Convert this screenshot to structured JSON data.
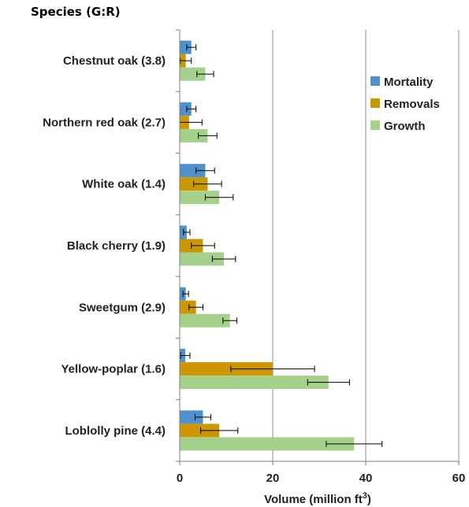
{
  "chart_data": {
    "type": "bar",
    "orientation": "horizontal",
    "title": "Species (G:R)",
    "xlabel": "Volume (million ft",
    "xlabel_superscript": "3",
    "xlabel_suffix": ")",
    "ylabel": "",
    "xlim": [
      0,
      60
    ],
    "xticks": [
      0,
      20,
      40,
      60
    ],
    "grid": "vertical",
    "legend_position": "right",
    "categories": [
      "Chestnut oak (3.8)",
      "Northern red oak (2.7)",
      "White oak (1.4)",
      "Black cherry (1.9)",
      "Sweetgum (2.9)",
      "Yellow-poplar (1.6)",
      "Loblolly pine (4.4)"
    ],
    "series": [
      {
        "name": "Mortality",
        "color": "#4f91cd",
        "values": [
          2.5,
          2.5,
          5.5,
          1.5,
          1.3,
          1.2,
          5.0
        ],
        "error": [
          1.0,
          1.0,
          2.0,
          0.7,
          0.6,
          1.0,
          1.7
        ]
      },
      {
        "name": "Removals",
        "color": "#cc9700",
        "values": [
          1.3,
          2.0,
          6.0,
          5.0,
          3.5,
          20.0,
          8.5
        ],
        "error": [
          1.2,
          2.8,
          3.0,
          2.5,
          1.5,
          9.0,
          4.0
        ]
      },
      {
        "name": "Growth",
        "color": "#a6d18d",
        "values": [
          5.5,
          6.0,
          8.5,
          9.5,
          10.8,
          32.0,
          37.5
        ],
        "error": [
          1.8,
          2.0,
          3.0,
          2.5,
          1.5,
          4.5,
          6.0
        ]
      }
    ]
  }
}
